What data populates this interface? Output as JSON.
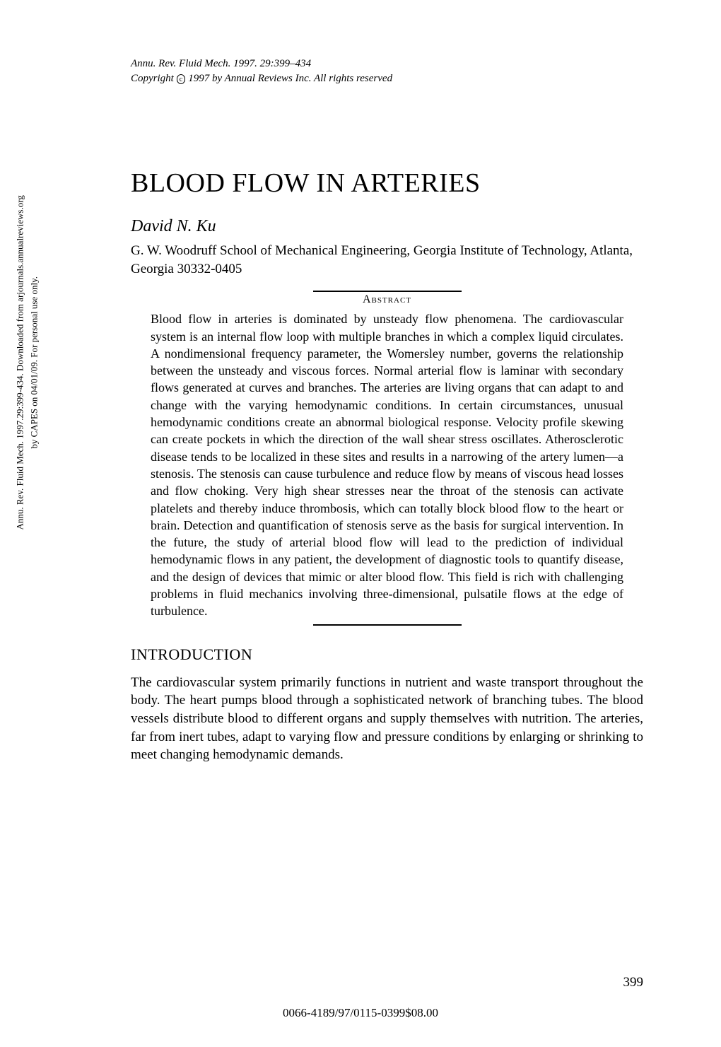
{
  "sidebar": {
    "line1": "Annu. Rev. Fluid Mech. 1997.29:399-434. Downloaded from arjournals.annualreviews.org",
    "line2": "by CAPES on 04/01/09. For personal use only."
  },
  "journal": {
    "citation": "Annu. Rev. Fluid Mech. 1997. 29:399–434",
    "copyright_prefix": "Copyright ",
    "copyright_symbol": "c",
    "copyright_suffix": " 1997 by Annual Reviews Inc. All rights reserved"
  },
  "title": "BLOOD FLOW IN ARTERIES",
  "author": "David N. Ku",
  "affiliation": "G. W. Woodruff School of Mechanical Engineering, Georgia Institute of Technology, Atlanta, Georgia 30332-0405",
  "abstract": {
    "heading": "Abstract",
    "body": "Blood flow in arteries is dominated by unsteady flow phenomena. The cardiovascular system is an internal flow loop with multiple branches in which a complex liquid circulates. A nondimensional frequency parameter, the Womersley number, governs the relationship between the unsteady and viscous forces. Normal arterial flow is laminar with secondary flows generated at curves and branches. The arteries are living organs that can adapt to and change with the varying hemodynamic conditions. In certain circumstances, unusual hemodynamic conditions create an abnormal biological response. Velocity profile skewing can create pockets in which the direction of the wall shear stress oscillates. Atherosclerotic disease tends to be localized in these sites and results in a narrowing of the artery lumen—a stenosis. The stenosis can cause turbulence and reduce flow by means of viscous head losses and flow choking. Very high shear stresses near the throat of the stenosis can activate platelets and thereby induce thrombosis, which can totally block blood flow to the heart or brain. Detection and quantification of stenosis serve as the basis for surgical intervention. In the future, the study of arterial blood flow will lead to the prediction of individual hemodynamic flows in any patient, the development of diagnostic tools to quantify disease, and the design of devices that mimic or alter blood flow. This field is rich with challenging problems in fluid mechanics involving three-dimensional, pulsatile flows at the edge of turbulence."
  },
  "introduction": {
    "heading": "INTRODUCTION",
    "body": "The cardiovascular system primarily functions in nutrient and waste transport throughout the body. The heart pumps blood through a sophisticated network of branching tubes. The blood vessels distribute blood to different organs and supply themselves with nutrition. The arteries, far from inert tubes, adapt to varying flow and pressure conditions by enlarging or shrinking to meet changing hemodynamic demands."
  },
  "page_number": "399",
  "footer_code": "0066-4189/97/0115-0399$08.00",
  "styles": {
    "background_color": "#ffffff",
    "text_color": "#000000",
    "title_fontsize": 38,
    "author_fontsize": 24,
    "affiliation_fontsize": 19,
    "abstract_fontsize": 18,
    "heading_fontsize": 22,
    "body_fontsize": 19,
    "journal_fontsize": 15,
    "sidebar_fontsize": 13,
    "divider_width": 210,
    "divider_color": "#000000",
    "font_family": "Georgia, Times New Roman, serif"
  }
}
